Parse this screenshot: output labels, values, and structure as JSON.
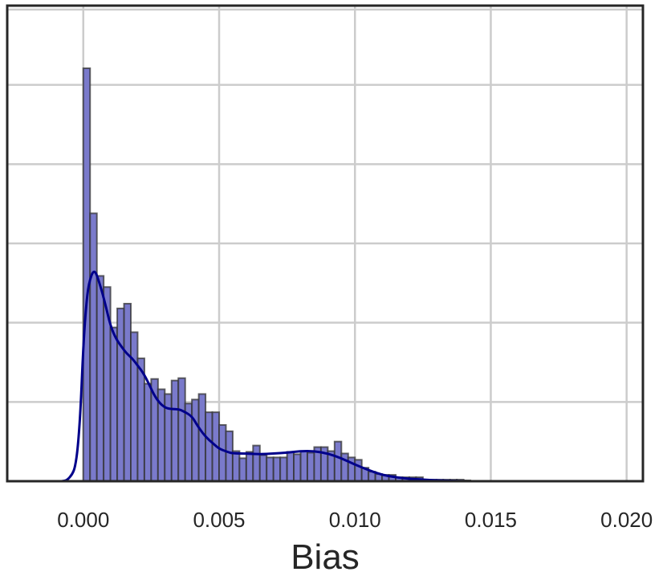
{
  "chart_data": {
    "type": "bar",
    "title": "",
    "xlabel": "Bias",
    "ylabel": "",
    "xlim": [
      -0.0028,
      0.0206
    ],
    "ylim": [
      0,
      1
    ],
    "grid": true,
    "x_ticks": [
      {
        "value": 0.0,
        "label": "0.000"
      },
      {
        "value": 0.005,
        "label": "0.005"
      },
      {
        "value": 0.01,
        "label": "0.010"
      },
      {
        "value": 0.015,
        "label": "0.015"
      },
      {
        "value": 0.02,
        "label": "0.020"
      }
    ],
    "y_gridlines": [
      0.1667,
      0.3333,
      0.5,
      0.6667,
      0.8333,
      0.9917
    ],
    "bin_width": 0.00025,
    "bins_start": 0.0,
    "bar_color": "#7a7acb",
    "bar_edge_color": "#333333",
    "kde_color": "#00008b",
    "histogram_values": [
      0.8683,
      0.5633,
      0.4317,
      0.4083,
      0.3233,
      0.3633,
      0.3733,
      0.3133,
      0.2583,
      0.205,
      0.215,
      0.1933,
      0.1833,
      0.2117,
      0.2167,
      0.1633,
      0.1717,
      0.1833,
      0.145,
      0.145,
      0.1183,
      0.105,
      0.0633,
      0.0483,
      0.0617,
      0.075,
      0.055,
      0.05,
      0.05,
      0.05,
      0.0617,
      0.0567,
      0.0633,
      0.06,
      0.0717,
      0.0717,
      0.0633,
      0.0833,
      0.0583,
      0.05,
      0.045,
      0.0283,
      0.02,
      0.015,
      0.0133,
      0.0133,
      0.0083,
      0.0083,
      0.0083,
      0.0083,
      0.0033,
      0.0033,
      0.0033,
      0.0033,
      0.0033,
      0.0033,
      0.0017
    ],
    "kde_points": [
      [
        -0.0008,
        0.0
      ],
      [
        -0.0006,
        0.0017
      ],
      [
        -0.0004,
        0.015
      ],
      [
        -0.0003,
        0.03
      ],
      [
        -0.0002,
        0.07
      ],
      [
        -0.0001,
        0.15
      ],
      [
        0.0,
        0.2833
      ],
      [
        0.0001,
        0.3667
      ],
      [
        0.0002,
        0.4167
      ],
      [
        0.0004,
        0.4483
      ],
      [
        0.0006,
        0.4167
      ],
      [
        0.0008,
        0.375
      ],
      [
        0.001,
        0.3267
      ],
      [
        0.0012,
        0.3
      ],
      [
        0.0014,
        0.2833
      ],
      [
        0.0016,
        0.2683
      ],
      [
        0.0018,
        0.2583
      ],
      [
        0.002,
        0.2433
      ],
      [
        0.0022,
        0.2283
      ],
      [
        0.0024,
        0.2067
      ],
      [
        0.0026,
        0.1817
      ],
      [
        0.0028,
        0.165
      ],
      [
        0.003,
        0.155
      ],
      [
        0.0032,
        0.1517
      ],
      [
        0.0035,
        0.1517
      ],
      [
        0.0037,
        0.1467
      ],
      [
        0.004,
        0.1367
      ],
      [
        0.0042,
        0.1167
      ],
      [
        0.0045,
        0.0933
      ],
      [
        0.0048,
        0.0783
      ],
      [
        0.005,
        0.0683
      ],
      [
        0.0053,
        0.0617
      ],
      [
        0.0055,
        0.0583
      ],
      [
        0.006,
        0.0583
      ],
      [
        0.0065,
        0.0567
      ],
      [
        0.007,
        0.0583
      ],
      [
        0.0075,
        0.06
      ],
      [
        0.008,
        0.0633
      ],
      [
        0.0085,
        0.0633
      ],
      [
        0.009,
        0.0583
      ],
      [
        0.0095,
        0.0483
      ],
      [
        0.01,
        0.035
      ],
      [
        0.0105,
        0.0233
      ],
      [
        0.011,
        0.0133
      ],
      [
        0.0115,
        0.0083
      ],
      [
        0.012,
        0.005
      ],
      [
        0.0125,
        0.0033
      ],
      [
        0.013,
        0.0017
      ],
      [
        0.0135,
        0.0008
      ],
      [
        0.014,
        0.0
      ],
      [
        0.015,
        0.0
      ]
    ]
  }
}
